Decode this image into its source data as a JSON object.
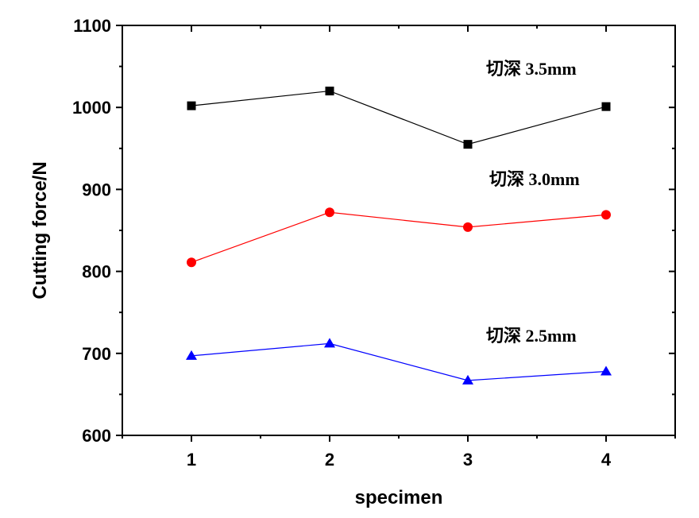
{
  "chart_data": {
    "type": "line",
    "xlabel": "specimen",
    "ylabel": "Cutting force/N",
    "x": [
      1,
      2,
      3,
      4
    ],
    "xticks": [
      "1",
      "2",
      "3",
      "4"
    ],
    "xlim": [
      0.5,
      4.5
    ],
    "ylim": [
      600,
      1100
    ],
    "yticks": [
      "600",
      "700",
      "800",
      "900",
      "1000",
      "1100"
    ],
    "grid": false,
    "legend": "none",
    "series": [
      {
        "name": "切深  3.5mm",
        "values": [
          1002,
          1020,
          955,
          1001
        ],
        "color": "#000000",
        "marker": "square"
      },
      {
        "name": "切深  3.0mm",
        "values": [
          811,
          872,
          854,
          869
        ],
        "color": "#ff0000",
        "marker": "circle"
      },
      {
        "name": "切深  2.5mm",
        "values": [
          697,
          712,
          667,
          678
        ],
        "color": "#0000ff",
        "marker": "triangle"
      }
    ]
  }
}
